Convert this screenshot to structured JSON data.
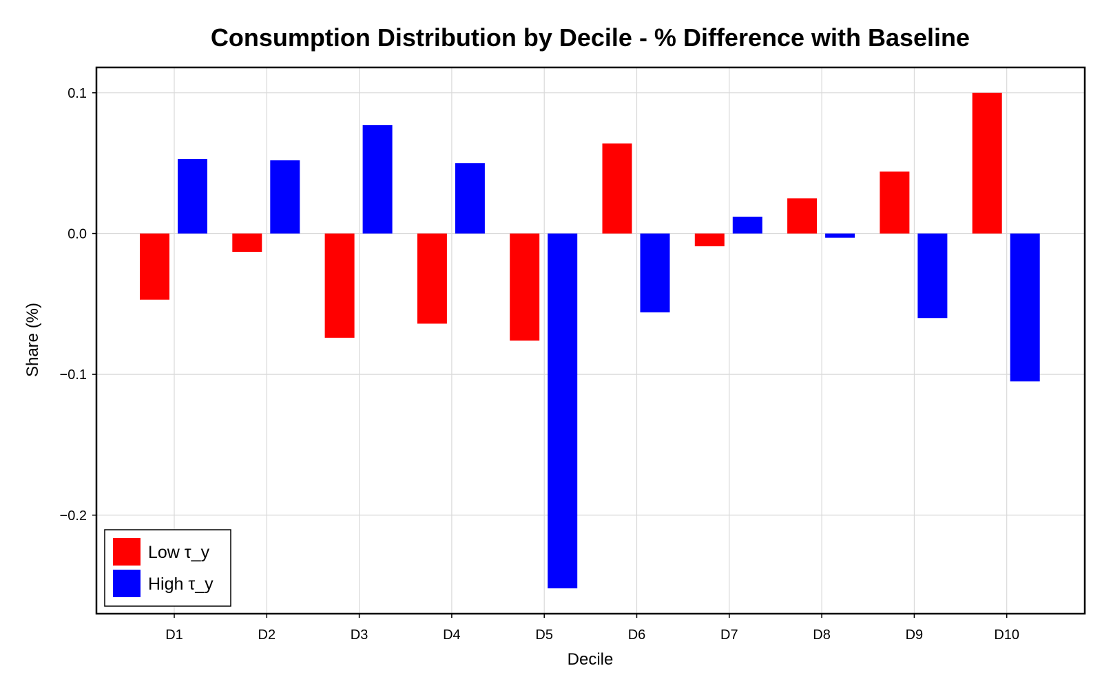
{
  "chart_data": {
    "type": "bar",
    "title": "Consumption Distribution by Decile - % Difference with Baseline",
    "xlabel": "Decile",
    "ylabel": "Share (%)",
    "categories": [
      "D1",
      "D2",
      "D3",
      "D4",
      "D5",
      "D6",
      "D7",
      "D8",
      "D9",
      "D10"
    ],
    "series": [
      {
        "name": "Low τ_y",
        "color": "#ff0000",
        "values": [
          -0.047,
          -0.013,
          -0.074,
          -0.064,
          -0.076,
          0.064,
          -0.009,
          0.025,
          0.044,
          0.1
        ]
      },
      {
        "name": "High τ_y",
        "color": "#0000ff",
        "values": [
          0.053,
          0.052,
          0.077,
          0.05,
          -0.252,
          -0.056,
          0.012,
          -0.003,
          -0.06,
          -0.105
        ]
      }
    ],
    "ylim": [
      -0.27,
      0.118
    ],
    "yticks": [
      0.1,
      0.0,
      -0.1,
      -0.2
    ],
    "ytick_labels": [
      "0.1",
      "0.0",
      "−0.1",
      "−0.2"
    ],
    "grid": true,
    "legend_position": "bottom-left"
  }
}
